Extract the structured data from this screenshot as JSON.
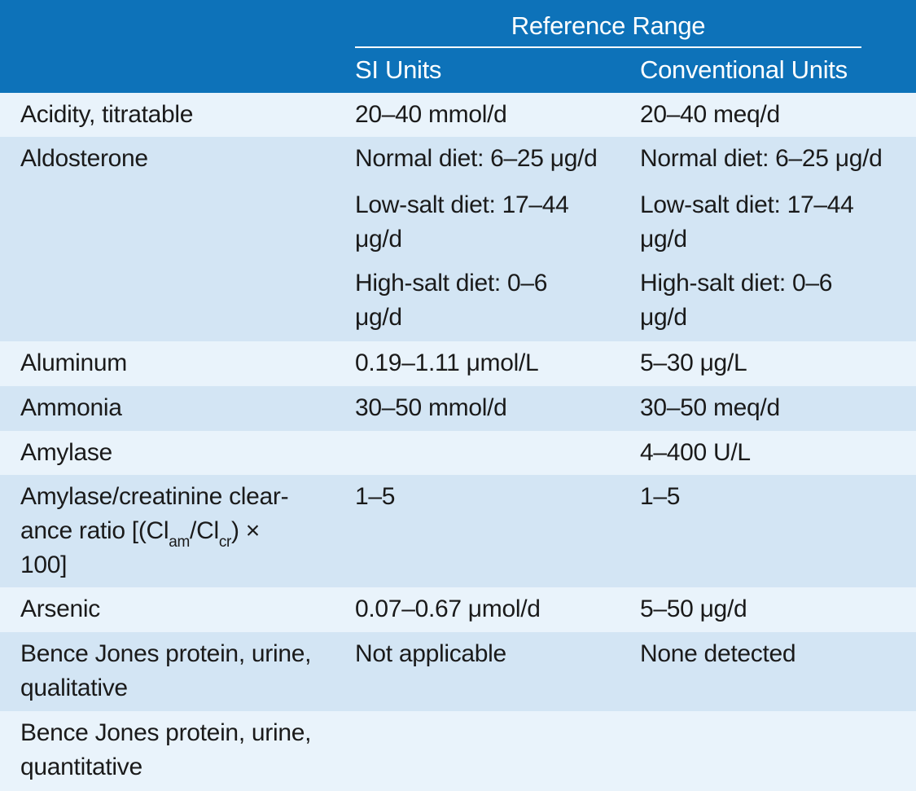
{
  "header": {
    "group_title": "Reference Range",
    "col_si": "SI Units",
    "col_conventional": "Conventional Units"
  },
  "rows": [
    {
      "name": [
        "Acidity, titratable"
      ],
      "si": [
        "20–40 mmol/d"
      ],
      "conv": [
        "20–40 meq/d"
      ]
    },
    {
      "name": [
        "Aldosterone"
      ],
      "si": [
        "Normal diet: 6–25 μg/d",
        "Low-salt diet: 17–44",
        "μg/d",
        "High-salt diet: 0–6",
        "μg/d"
      ],
      "conv": [
        "Normal diet: 6–25 μg/d",
        "Low-salt diet: 17–44",
        "μg/d",
        "High-salt diet: 0–6",
        "μg/d"
      ]
    },
    {
      "name": [
        "Aluminum"
      ],
      "si": [
        "0.19–1.11 μmol/L"
      ],
      "conv": [
        "5–30 μg/L"
      ]
    },
    {
      "name": [
        "Ammonia"
      ],
      "si": [
        "30–50 mmol/d"
      ],
      "conv": [
        "30–50 meq/d"
      ]
    },
    {
      "name": [
        "Amylase"
      ],
      "si": [
        ""
      ],
      "conv": [
        "4–400 U/L"
      ]
    },
    {
      "name": [
        "Amylase/creatinine clear-",
        "ance ratio [(Cl",
        "am",
        "/Cl",
        "cr",
        ") ×",
        "100]"
      ],
      "si": [
        "1–5"
      ],
      "conv": [
        "1–5"
      ]
    },
    {
      "name": [
        "Arsenic"
      ],
      "si": [
        "0.07–0.67 μmol/d"
      ],
      "conv": [
        "5–50 μg/d"
      ]
    },
    {
      "name": [
        "Bence Jones protein, urine,",
        "qualitative"
      ],
      "si": [
        "Not applicable"
      ],
      "conv": [
        "None detected"
      ]
    },
    {
      "name": [
        "Bence Jones protein, urine,",
        "quantitative"
      ],
      "si": [
        ""
      ],
      "conv": [
        ""
      ]
    }
  ]
}
